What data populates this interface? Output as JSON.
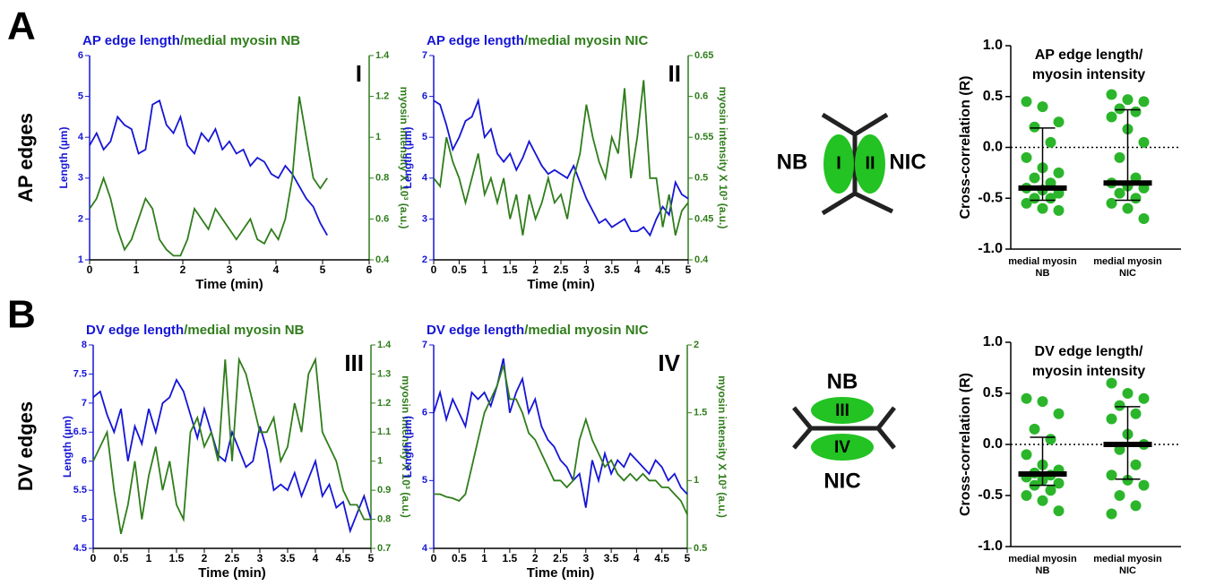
{
  "panels": [
    {
      "letter": "A",
      "row_label": "AP edges"
    },
    {
      "letter": "B",
      "row_label": "DV edges"
    }
  ],
  "diagrams": [
    {
      "left_label": "NB",
      "cells": [
        "I",
        "II"
      ],
      "right_label": "NIC"
    },
    {
      "top_label": "NB",
      "cells": [
        "III",
        "IV"
      ],
      "bottom_label": "NIC"
    }
  ],
  "chart_data": [
    {
      "type": "line",
      "title": [
        {
          "text": "AP edge length",
          "color": "#1515d6"
        },
        {
          "text": "/medial myosin NB",
          "color": "#2f7d1b"
        }
      ],
      "panel_label": "I",
      "xlabel": "Time (min)",
      "ylabel": "Length (µm)",
      "y2label": "myosin intensity X 10³ (a.u.)",
      "xlim": [
        0,
        6
      ],
      "xticks": [
        0,
        1,
        2,
        3,
        4,
        5,
        6
      ],
      "ylim": [
        1,
        6
      ],
      "yticks": [
        1,
        2,
        3,
        4,
        5,
        6
      ],
      "y2lim": [
        0.4,
        1.4
      ],
      "y2ticks": [
        0.4,
        0.6,
        0.8,
        1,
        1.2,
        1.4
      ],
      "x": [
        0,
        0.15,
        0.3,
        0.45,
        0.6,
        0.75,
        0.9,
        1.05,
        1.2,
        1.35,
        1.5,
        1.65,
        1.8,
        1.95,
        2.1,
        2.25,
        2.4,
        2.55,
        2.7,
        2.85,
        3,
        3.15,
        3.3,
        3.45,
        3.6,
        3.75,
        3.9,
        4.05,
        4.2,
        4.35,
        4.5,
        4.65,
        4.8,
        4.95,
        5.1
      ],
      "series": [
        {
          "color": "#1515d6",
          "values": [
            3.8,
            4.1,
            3.7,
            3.9,
            4.5,
            4.3,
            4.2,
            3.6,
            3.7,
            4.8,
            4.9,
            4.3,
            4.1,
            4.5,
            3.8,
            3.6,
            4.1,
            3.9,
            4.2,
            3.7,
            3.9,
            3.6,
            3.7,
            3.3,
            3.5,
            3.4,
            3.1,
            3.0,
            3.3,
            3.1,
            2.8,
            2.5,
            2.3,
            1.9,
            1.6
          ]
        },
        {
          "color": "#2f7d1b",
          "axis": "y2",
          "values": [
            0.65,
            0.7,
            0.8,
            0.7,
            0.55,
            0.45,
            0.5,
            0.6,
            0.7,
            0.65,
            0.5,
            0.45,
            0.42,
            0.42,
            0.5,
            0.65,
            0.6,
            0.55,
            0.65,
            0.6,
            0.55,
            0.5,
            0.55,
            0.6,
            0.5,
            0.48,
            0.55,
            0.5,
            0.6,
            0.8,
            1.2,
            1.0,
            0.8,
            0.75,
            0.8
          ]
        }
      ]
    },
    {
      "type": "line",
      "title": [
        {
          "text": "AP edge length",
          "color": "#1515d6"
        },
        {
          "text": "/medial myosin NIC",
          "color": "#2f7d1b"
        }
      ],
      "panel_label": "II",
      "xlabel": "Time (min)",
      "ylabel": "Length (µm)",
      "y2label": "myosin intensity X 10³ (a.u.)",
      "xlim": [
        0,
        5
      ],
      "xticks": [
        0,
        0.5,
        1,
        1.5,
        2,
        2.5,
        3,
        3.5,
        4,
        4.5,
        5
      ],
      "ylim": [
        2,
        7
      ],
      "yticks": [
        2,
        3,
        4,
        5,
        6,
        7
      ],
      "y2lim": [
        0.4,
        0.65
      ],
      "y2ticks": [
        0.4,
        0.45,
        0.5,
        0.55,
        0.6,
        0.65
      ],
      "x": [
        0,
        0.125,
        0.25,
        0.375,
        0.5,
        0.625,
        0.75,
        0.875,
        1,
        1.125,
        1.25,
        1.375,
        1.5,
        1.625,
        1.75,
        1.875,
        2,
        2.125,
        2.25,
        2.375,
        2.5,
        2.625,
        2.75,
        2.875,
        3,
        3.125,
        3.25,
        3.375,
        3.5,
        3.625,
        3.75,
        3.875,
        4,
        4.125,
        4.25,
        4.375,
        4.5,
        4.625,
        4.75,
        4.875,
        5
      ],
      "series": [
        {
          "color": "#1515d6",
          "values": [
            5.9,
            5.8,
            5.3,
            4.7,
            5.0,
            5.4,
            5.5,
            5.9,
            5.0,
            5.2,
            4.6,
            4.4,
            4.6,
            4.2,
            4.5,
            4.9,
            4.6,
            4.3,
            4.1,
            4.2,
            4.1,
            4.0,
            4.3,
            3.9,
            3.5,
            3.2,
            2.9,
            3.0,
            2.8,
            2.9,
            3.0,
            2.7,
            2.7,
            2.8,
            2.6,
            3.0,
            3.3,
            3.1,
            3.9,
            3.6,
            3.5
          ]
        },
        {
          "color": "#2f7d1b",
          "axis": "y2",
          "values": [
            0.5,
            0.49,
            0.55,
            0.52,
            0.5,
            0.47,
            0.5,
            0.53,
            0.48,
            0.5,
            0.47,
            0.5,
            0.45,
            0.48,
            0.43,
            0.48,
            0.45,
            0.47,
            0.5,
            0.47,
            0.48,
            0.45,
            0.5,
            0.53,
            0.59,
            0.55,
            0.52,
            0.5,
            0.55,
            0.53,
            0.61,
            0.5,
            0.55,
            0.62,
            0.5,
            0.5,
            0.44,
            0.48,
            0.43,
            0.46,
            0.47
          ]
        }
      ]
    },
    {
      "type": "line",
      "title": [
        {
          "text": "DV edge length",
          "color": "#1515d6"
        },
        {
          "text": "/medial myosin NB",
          "color": "#2f7d1b"
        }
      ],
      "panel_label": "III",
      "xlabel": "Time (min)",
      "ylabel": "Length (µm)",
      "y2label": "myosin intensity X 10³ (a.u.)",
      "xlim": [
        0,
        5
      ],
      "xticks": [
        0,
        0.5,
        1,
        1.5,
        2,
        2.5,
        3,
        3.5,
        4,
        4.5,
        5
      ],
      "ylim": [
        4.5,
        8
      ],
      "yticks": [
        4.5,
        5,
        5.5,
        6,
        6.5,
        7,
        7.5,
        8
      ],
      "y2lim": [
        0.7,
        1.4
      ],
      "y2ticks": [
        0.7,
        0.8,
        0.9,
        1,
        1.1,
        1.2,
        1.3,
        1.4
      ],
      "x": [
        0,
        0.125,
        0.25,
        0.375,
        0.5,
        0.625,
        0.75,
        0.875,
        1,
        1.125,
        1.25,
        1.375,
        1.5,
        1.625,
        1.75,
        1.875,
        2,
        2.125,
        2.25,
        2.375,
        2.5,
        2.625,
        2.75,
        2.875,
        3,
        3.125,
        3.25,
        3.375,
        3.5,
        3.625,
        3.75,
        3.875,
        4,
        4.125,
        4.25,
        4.375,
        4.5,
        4.625,
        4.75,
        4.875,
        5
      ],
      "series": [
        {
          "color": "#1515d6",
          "values": [
            7.1,
            7.2,
            6.8,
            6.5,
            6.9,
            6.0,
            6.6,
            6.3,
            6.9,
            6.5,
            7.0,
            7.1,
            7.4,
            7.2,
            6.8,
            6.4,
            6.9,
            6.5,
            6.1,
            6.0,
            6.5,
            6.2,
            5.9,
            6.0,
            6.6,
            6.2,
            5.5,
            5.6,
            5.5,
            5.8,
            5.4,
            5.7,
            6.0,
            5.4,
            5.6,
            5.2,
            5.3,
            4.8,
            5.1,
            5.4,
            5.0
          ]
        },
        {
          "color": "#2f7d1b",
          "axis": "y2",
          "values": [
            1.0,
            1.05,
            1.1,
            0.9,
            0.75,
            0.85,
            1.0,
            0.8,
            0.95,
            1.05,
            0.9,
            1.0,
            0.85,
            0.8,
            1.1,
            1.15,
            1.05,
            1.1,
            1.0,
            1.35,
            1.0,
            1.35,
            1.3,
            1.2,
            1.1,
            1.1,
            1.15,
            1.0,
            1.05,
            1.2,
            1.1,
            1.3,
            1.35,
            1.1,
            1.05,
            1.0,
            0.9,
            0.85,
            0.85,
            0.8,
            0.8
          ]
        }
      ]
    },
    {
      "type": "line",
      "title": [
        {
          "text": "DV edge length",
          "color": "#1515d6"
        },
        {
          "text": "/medial myosin NIC",
          "color": "#2f7d1b"
        }
      ],
      "panel_label": "IV",
      "xlabel": "Time (min)",
      "ylabel": "Length (µm)",
      "y2label": "myosin intensity X 10³ (a.u.)",
      "xlim": [
        0,
        5
      ],
      "xticks": [
        0,
        0.5,
        1,
        1.5,
        2,
        2.5,
        3,
        3.5,
        4,
        4.5,
        5
      ],
      "ylim": [
        4,
        7
      ],
      "yticks": [
        4,
        5,
        6,
        7
      ],
      "y2lim": [
        0.5,
        2
      ],
      "y2ticks": [
        0.5,
        1,
        1.5,
        2
      ],
      "x": [
        0,
        0.125,
        0.25,
        0.375,
        0.5,
        0.625,
        0.75,
        0.875,
        1,
        1.125,
        1.25,
        1.375,
        1.5,
        1.625,
        1.75,
        1.875,
        2,
        2.125,
        2.25,
        2.375,
        2.5,
        2.625,
        2.75,
        2.875,
        3,
        3.125,
        3.25,
        3.375,
        3.5,
        3.625,
        3.75,
        3.875,
        4,
        4.125,
        4.25,
        4.375,
        4.5,
        4.625,
        4.75,
        4.875,
        5
      ],
      "series": [
        {
          "color": "#1515d6",
          "values": [
            6.0,
            6.3,
            5.9,
            6.2,
            6.0,
            5.8,
            6.3,
            6.2,
            6.3,
            6.1,
            6.4,
            6.8,
            6.0,
            6.3,
            6.5,
            6.0,
            6.2,
            5.8,
            5.6,
            5.5,
            5.3,
            5.2,
            5.0,
            5.1,
            4.6,
            5.3,
            5.0,
            5.4,
            5.1,
            5.3,
            5.2,
            5.4,
            5.3,
            5.2,
            5.1,
            5.3,
            5.2,
            5.0,
            5.1,
            4.9,
            4.8
          ]
        },
        {
          "color": "#2f7d1b",
          "axis": "y2",
          "values": [
            0.9,
            0.9,
            0.88,
            0.87,
            0.85,
            0.9,
            1.1,
            1.3,
            1.5,
            1.6,
            1.7,
            1.85,
            1.6,
            1.6,
            1.5,
            1.35,
            1.3,
            1.2,
            1.1,
            1.0,
            1.0,
            0.95,
            1.0,
            1.3,
            1.45,
            1.3,
            1.2,
            1.1,
            1.15,
            1.05,
            1.0,
            1.05,
            1.0,
            1.05,
            1.0,
            1.0,
            0.95,
            0.95,
            0.9,
            0.85,
            0.75
          ]
        }
      ]
    },
    {
      "type": "strip",
      "title": [
        "AP edge length/",
        "myosin intensity"
      ],
      "ylabel": "Cross-correlation (R)",
      "color": "#2bb52b",
      "ref_line": 0,
      "ylim": [
        -1,
        1
      ],
      "yticks": [
        {
          "value": -1,
          "label": "-1.0"
        },
        -0.5,
        {
          "value": 0,
          "label": "0.0"
        },
        0.5,
        {
          "value": 1,
          "label": "1.0"
        }
      ],
      "categories": [
        [
          "medial myosin",
          "NB"
        ],
        [
          "medial myosin",
          "NIC"
        ]
      ],
      "groups": [
        {
          "values": [
            0.45,
            0.4,
            0.25,
            0.2,
            0.05,
            -0.1,
            -0.2,
            -0.25,
            -0.3,
            -0.35,
            -0.4,
            -0.42,
            -0.45,
            -0.5,
            -0.5,
            -0.55,
            -0.6,
            -0.62
          ],
          "median": -0.4,
          "whisker": [
            -0.52,
            0.19
          ]
        },
        {
          "values": [
            0.52,
            0.47,
            0.45,
            0.38,
            0.35,
            0.3,
            0.18,
            0.05,
            -0.1,
            -0.3,
            -0.35,
            -0.38,
            -0.4,
            -0.45,
            -0.5,
            -0.55,
            -0.6,
            -0.7
          ],
          "median": -0.35,
          "whisker": [
            -0.52,
            0.37
          ]
        }
      ]
    },
    {
      "type": "strip",
      "title": [
        "DV edge length/",
        "myosin intensity"
      ],
      "ylabel": "Cross-correlation (R)",
      "color": "#2bb52b",
      "ref_line": 0,
      "ylim": [
        -1,
        1
      ],
      "yticks": [
        {
          "value": -1,
          "label": "-1.0"
        },
        -0.5,
        {
          "value": 0,
          "label": "0.0"
        },
        0.5,
        {
          "value": 1,
          "label": "1.0"
        }
      ],
      "categories": [
        [
          "medial myosin",
          "NB"
        ],
        [
          "medial myosin",
          "NIC"
        ]
      ],
      "groups": [
        {
          "values": [
            0.45,
            0.42,
            0.3,
            0.15,
            0.05,
            -0.1,
            -0.2,
            -0.25,
            -0.28,
            -0.3,
            -0.32,
            -0.35,
            -0.38,
            -0.4,
            -0.45,
            -0.5,
            -0.55,
            -0.65
          ],
          "median": -0.29,
          "whisker": [
            -0.4,
            0.07
          ]
        },
        {
          "values": [
            0.6,
            0.5,
            0.45,
            0.38,
            0.3,
            0.25,
            0.1,
            0.0,
            -0.05,
            -0.2,
            -0.3,
            -0.35,
            -0.4,
            -0.5,
            -0.6,
            -0.68
          ],
          "median": 0,
          "whisker": [
            -0.34,
            0.37
          ]
        }
      ]
    }
  ]
}
